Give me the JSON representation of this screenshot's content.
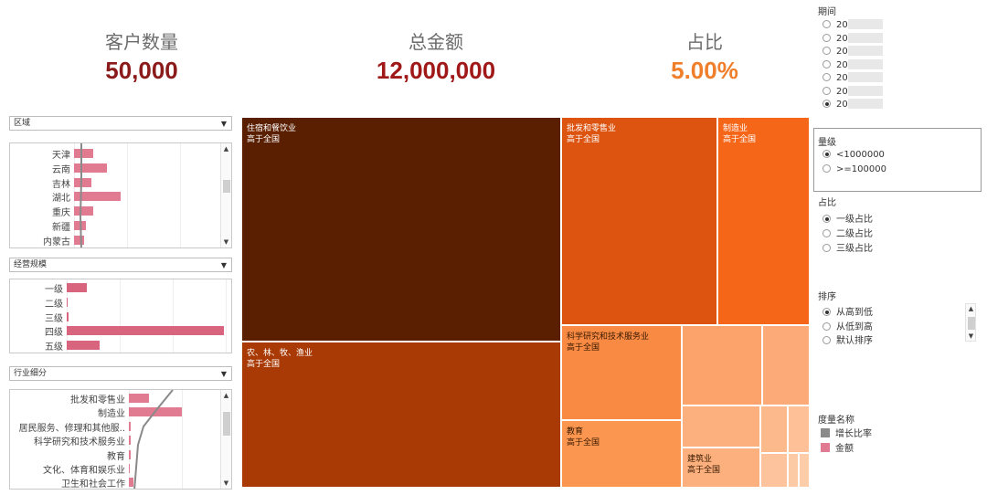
{
  "kpis": {
    "customers": {
      "label": "客户数量",
      "value": "50,000",
      "color": "#8b1a1a"
    },
    "amount": {
      "label": "总金额",
      "value": "12,000,000",
      "color": "#a01818"
    },
    "ratio": {
      "label": "占比",
      "value": "5.00%",
      "color": "#f07f2b"
    }
  },
  "filters": {
    "region": {
      "dropdown": "区域",
      "rows": [
        {
          "label": "天津",
          "bar": 0.11
        },
        {
          "label": "云南",
          "bar": 0.19
        },
        {
          "label": "吉林",
          "bar": 0.1
        },
        {
          "label": "湖北",
          "bar": 0.27
        },
        {
          "label": "重庆",
          "bar": 0.11
        },
        {
          "label": "新疆",
          "bar": 0.07
        },
        {
          "label": "内蒙古",
          "bar": 0.06
        }
      ]
    },
    "scale": {
      "dropdown": "经营规模",
      "rows": [
        {
          "label": "一级",
          "bar": 0.13
        },
        {
          "label": "二级",
          "bar": 0.0
        },
        {
          "label": "三级",
          "bar": 0.01
        },
        {
          "label": "四级",
          "bar": 1.0
        },
        {
          "label": "五级",
          "bar": 0.21
        }
      ]
    },
    "industry": {
      "dropdown": "行业细分",
      "rows": [
        {
          "label": "批发和零售业",
          "bar": 0.22
        },
        {
          "label": "制造业",
          "bar": 0.58
        },
        {
          "label": "居民服务、修理和其他服..",
          "bar": 0.02
        },
        {
          "label": "科学研究和技术服务业",
          "bar": 0.02
        },
        {
          "label": "教育",
          "bar": 0.02
        },
        {
          "label": "文化、体育和娱乐业",
          "bar": 0.01
        },
        {
          "label": "卫生和社会工作",
          "bar": 0.05
        }
      ]
    }
  },
  "treemap": {
    "tiles": [
      {
        "name": "住宿和餐饮业",
        "sub": "高于全国",
        "color": "#5a1e00"
      },
      {
        "name": "农、林、牧、渔业",
        "sub": "高于全国",
        "color": "#a93a05"
      },
      {
        "name": "批发和零售业",
        "sub": "高于全国",
        "color": "#dc5410"
      },
      {
        "name": "制造业",
        "sub": "高于全国",
        "color": "#f56619"
      },
      {
        "name": "科学研究和技术服务业",
        "sub": "高于全国",
        "color": "#f88a43"
      },
      {
        "name": "教育",
        "sub": "高于全国",
        "color": "#fa964f"
      },
      {
        "name": "建筑业",
        "sub": "高于全国",
        "color": "#fbb07e"
      }
    ]
  },
  "right": {
    "period": {
      "title": "期间",
      "options": [
        "20",
        "20",
        "20",
        "20",
        "20",
        "20",
        "20"
      ],
      "selected": 6
    },
    "magnitude": {
      "title": "量级",
      "options": [
        "<1000000",
        ">=100000"
      ],
      "selected": 0
    },
    "ratio": {
      "title": "占比",
      "options": [
        "一级占比",
        "二级占比",
        "三级占比"
      ],
      "selected": 0
    },
    "sort": {
      "title": "排序",
      "options": [
        "从高到低",
        "从低到高",
        "默认排序"
      ],
      "selected": 0
    },
    "measure": {
      "title": "度量名称",
      "items": [
        {
          "label": "增长比率",
          "color": "#8a8a8a"
        },
        {
          "label": "金额",
          "color": "#e07b91"
        }
      ]
    }
  }
}
